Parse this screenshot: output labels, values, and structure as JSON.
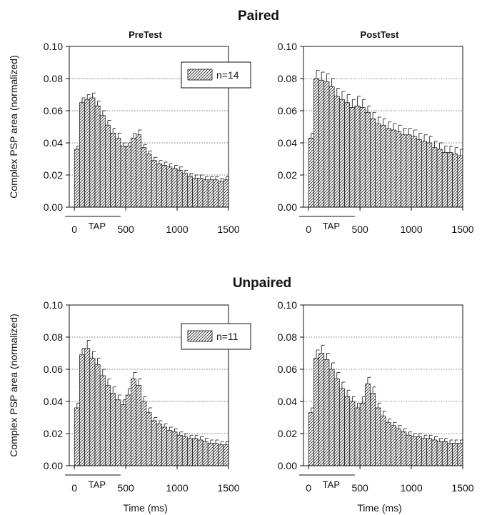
{
  "figure": {
    "row_titles": [
      "Paired",
      "Unpaired"
    ],
    "ylabel": "Complex PSP area (normalized)",
    "xlabel": "Time (ms)",
    "tap_label": "TAP"
  },
  "chart_data": [
    {
      "type": "bar",
      "title": "PreTest",
      "group": "Paired",
      "legend": "n=14",
      "legend_position": "top-right",
      "x": [
        0,
        50,
        100,
        150,
        200,
        250,
        300,
        350,
        400,
        450,
        500,
        550,
        600,
        650,
        700,
        750,
        800,
        850,
        900,
        950,
        1000,
        1050,
        1100,
        1150,
        1200,
        1250,
        1300,
        1350,
        1400,
        1450
      ],
      "values": [
        0.036,
        0.065,
        0.067,
        0.068,
        0.063,
        0.057,
        0.051,
        0.046,
        0.043,
        0.038,
        0.038,
        0.043,
        0.045,
        0.037,
        0.033,
        0.029,
        0.027,
        0.026,
        0.025,
        0.024,
        0.023,
        0.021,
        0.019,
        0.018,
        0.018,
        0.017,
        0.017,
        0.017,
        0.016,
        0.017
      ],
      "errors": [
        0.002,
        0.003,
        0.003,
        0.003,
        0.003,
        0.003,
        0.003,
        0.003,
        0.003,
        0.002,
        0.002,
        0.003,
        0.003,
        0.002,
        0.002,
        0.002,
        0.002,
        0.002,
        0.002,
        0.002,
        0.002,
        0.002,
        0.002,
        0.002,
        0.002,
        0.002,
        0.002,
        0.002,
        0.002,
        0.002
      ],
      "xlim": [
        -50,
        1500
      ],
      "ylim": [
        0,
        0.1
      ],
      "xticks": [
        0,
        500,
        1000,
        1500
      ],
      "xtick_labels": [
        "0",
        "500",
        "1000",
        "1500"
      ],
      "yticks": [
        0,
        0.02,
        0.04,
        0.06,
        0.08,
        0.1
      ],
      "ytick_labels": [
        "0.00",
        "0.02",
        "0.04",
        "0.06",
        "0.08",
        "0.10"
      ],
      "grid": "horizontal dotted"
    },
    {
      "type": "bar",
      "title": "PostTest",
      "group": "Paired",
      "x": [
        0,
        50,
        100,
        150,
        200,
        250,
        300,
        350,
        400,
        450,
        500,
        550,
        600,
        650,
        700,
        750,
        800,
        850,
        900,
        950,
        1000,
        1050,
        1100,
        1150,
        1200,
        1250,
        1300,
        1350,
        1400,
        1450
      ],
      "values": [
        0.043,
        0.08,
        0.079,
        0.078,
        0.075,
        0.069,
        0.067,
        0.065,
        0.062,
        0.063,
        0.062,
        0.059,
        0.055,
        0.052,
        0.051,
        0.049,
        0.048,
        0.047,
        0.045,
        0.045,
        0.044,
        0.042,
        0.041,
        0.04,
        0.037,
        0.036,
        0.034,
        0.034,
        0.033,
        0.032
      ],
      "errors": [
        0.003,
        0.005,
        0.005,
        0.005,
        0.005,
        0.005,
        0.005,
        0.005,
        0.005,
        0.006,
        0.005,
        0.004,
        0.004,
        0.004,
        0.004,
        0.004,
        0.004,
        0.004,
        0.004,
        0.004,
        0.004,
        0.004,
        0.004,
        0.004,
        0.004,
        0.004,
        0.004,
        0.004,
        0.004,
        0.004
      ],
      "xlim": [
        -50,
        1500
      ],
      "ylim": [
        0,
        0.1
      ],
      "xticks": [
        0,
        500,
        1000,
        1500
      ],
      "xtick_labels": [
        "0",
        "500",
        "1000",
        "1500"
      ],
      "yticks": [
        0,
        0.02,
        0.04,
        0.06,
        0.08,
        0.1
      ],
      "ytick_labels": [
        "0.00",
        "0.02",
        "0.04",
        "0.06",
        "0.08",
        "0.10"
      ],
      "grid": "horizontal dotted"
    },
    {
      "type": "bar",
      "title": "",
      "group": "Unpaired",
      "legend": "n=11",
      "legend_position": "top-right",
      "x": [
        0,
        50,
        100,
        150,
        200,
        250,
        300,
        350,
        400,
        450,
        500,
        550,
        600,
        650,
        700,
        750,
        800,
        850,
        900,
        950,
        1000,
        1050,
        1100,
        1150,
        1200,
        1250,
        1300,
        1350,
        1400,
        1450
      ],
      "values": [
        0.036,
        0.069,
        0.073,
        0.067,
        0.063,
        0.056,
        0.05,
        0.045,
        0.041,
        0.038,
        0.044,
        0.054,
        0.05,
        0.04,
        0.033,
        0.028,
        0.026,
        0.024,
        0.022,
        0.021,
        0.019,
        0.018,
        0.017,
        0.017,
        0.016,
        0.015,
        0.014,
        0.014,
        0.013,
        0.013
      ],
      "errors": [
        0.003,
        0.004,
        0.005,
        0.004,
        0.004,
        0.004,
        0.004,
        0.004,
        0.003,
        0.003,
        0.004,
        0.004,
        0.004,
        0.003,
        0.003,
        0.002,
        0.002,
        0.002,
        0.002,
        0.002,
        0.002,
        0.002,
        0.002,
        0.002,
        0.002,
        0.002,
        0.002,
        0.002,
        0.002,
        0.002
      ],
      "xlim": [
        -50,
        1500
      ],
      "ylim": [
        0,
        0.1
      ],
      "xticks": [
        0,
        500,
        1000,
        1500
      ],
      "xtick_labels": [
        "0",
        "500",
        "1000",
        "1500"
      ],
      "yticks": [
        0,
        0.02,
        0.04,
        0.06,
        0.08,
        0.1
      ],
      "ytick_labels": [
        "0.00",
        "0.02",
        "0.04",
        "0.06",
        "0.08",
        "0.10"
      ],
      "grid": "horizontal dotted"
    },
    {
      "type": "bar",
      "title": "",
      "group": "Unpaired",
      "x": [
        0,
        50,
        100,
        150,
        200,
        250,
        300,
        350,
        400,
        450,
        500,
        550,
        600,
        650,
        700,
        750,
        800,
        850,
        900,
        950,
        1000,
        1050,
        1100,
        1150,
        1200,
        1250,
        1300,
        1350,
        1400,
        1450
      ],
      "values": [
        0.033,
        0.067,
        0.07,
        0.066,
        0.06,
        0.054,
        0.048,
        0.043,
        0.04,
        0.036,
        0.039,
        0.051,
        0.045,
        0.036,
        0.031,
        0.027,
        0.025,
        0.023,
        0.021,
        0.019,
        0.018,
        0.018,
        0.017,
        0.017,
        0.016,
        0.015,
        0.015,
        0.014,
        0.014,
        0.014
      ],
      "errors": [
        0.003,
        0.005,
        0.005,
        0.004,
        0.004,
        0.004,
        0.004,
        0.004,
        0.003,
        0.003,
        0.004,
        0.004,
        0.004,
        0.003,
        0.003,
        0.002,
        0.002,
        0.002,
        0.002,
        0.002,
        0.002,
        0.002,
        0.002,
        0.002,
        0.002,
        0.002,
        0.002,
        0.002,
        0.002,
        0.002
      ],
      "xlim": [
        -50,
        1500
      ],
      "ylim": [
        0,
        0.1
      ],
      "xticks": [
        0,
        500,
        1000,
        1500
      ],
      "xtick_labels": [
        "0",
        "500",
        "1000",
        "1500"
      ],
      "yticks": [
        0,
        0.02,
        0.04,
        0.06,
        0.08,
        0.1
      ],
      "ytick_labels": [
        "0.00",
        "0.02",
        "0.04",
        "0.06",
        "0.08",
        "0.10"
      ],
      "grid": "horizontal dotted"
    }
  ]
}
